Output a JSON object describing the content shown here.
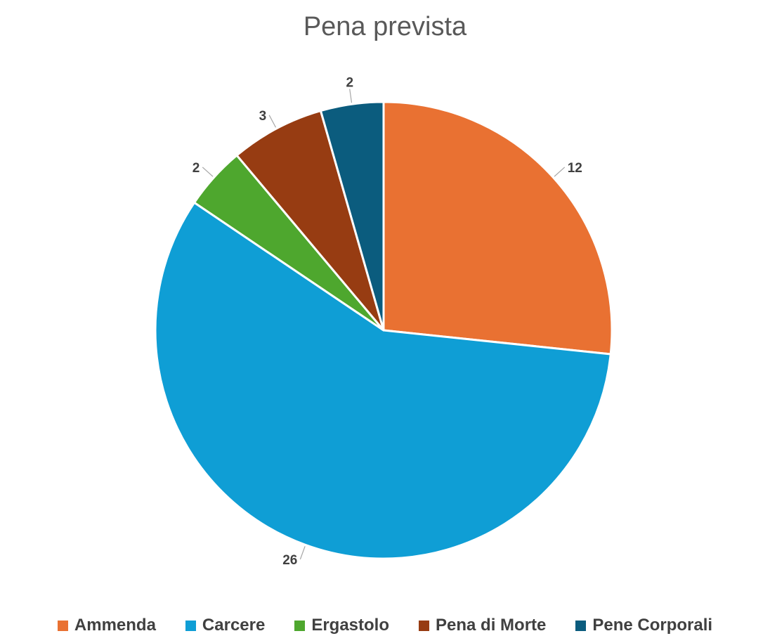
{
  "chart_data": {
    "type": "pie",
    "title": "Pena prevista",
    "categories": [
      "Ammenda",
      "Carcere",
      "Ergastolo",
      "Pena di Morte",
      "Pene Corporali"
    ],
    "values": [
      12,
      26,
      2,
      3,
      2
    ],
    "colors": [
      "#E97132",
      "#0F9ED5",
      "#4EA72E",
      "#973C12",
      "#0B5C7E"
    ],
    "data_labels": [
      "12",
      "26",
      "2",
      "3",
      "2"
    ],
    "start_angle": "12 o'clock",
    "direction": "clockwise",
    "legend_position": "bottom"
  }
}
